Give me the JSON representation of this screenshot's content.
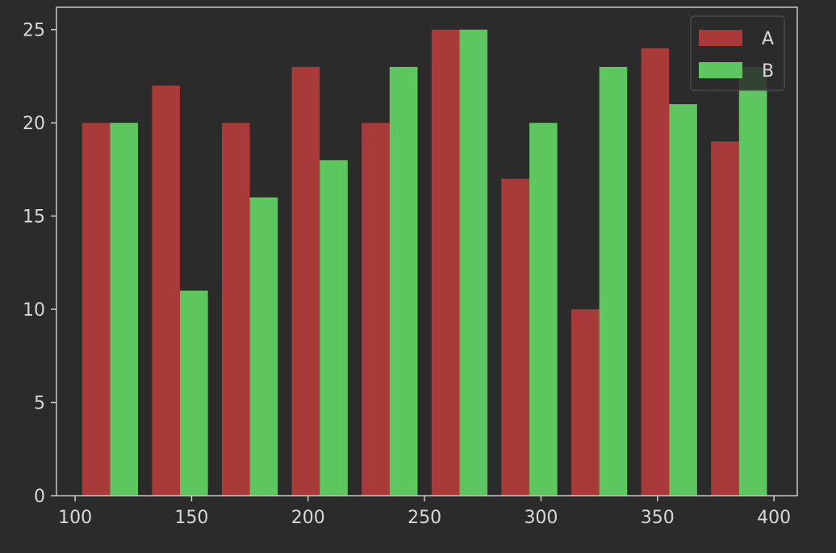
{
  "chart_data": {
    "type": "bar",
    "x": [
      115,
      145,
      175,
      205,
      235,
      265,
      295,
      325,
      355,
      385
    ],
    "series": [
      {
        "name": "A",
        "values": [
          20,
          22,
          20,
          23,
          20,
          25,
          17,
          10,
          24,
          19
        ],
        "color": "#a83a3a"
      },
      {
        "name": "B",
        "values": [
          20,
          11,
          16,
          18,
          23,
          25,
          20,
          23,
          21,
          23
        ],
        "color": "#5ec65e"
      }
    ],
    "xlim": [
      92,
      410
    ],
    "ylim": [
      0,
      26.2
    ],
    "x_ticks": [
      100,
      150,
      200,
      250,
      300,
      350,
      400
    ],
    "y_ticks": [
      0,
      5,
      10,
      15,
      20,
      25
    ],
    "grid": false,
    "legend_position": "top-right",
    "background": "#2b2b2b",
    "axes_color": "#c8c8c8"
  }
}
